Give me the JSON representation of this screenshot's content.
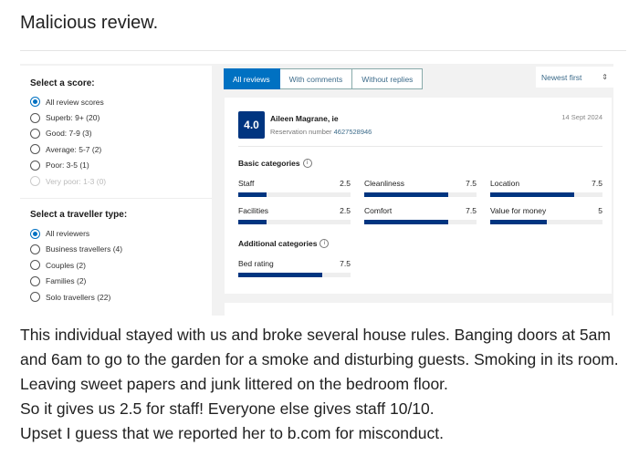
{
  "post": {
    "title": "Malicious review.",
    "body": [
      "This individual stayed with us and broke several house rules. Banging doors at 5am and 6am to go to the garden for a smoke and disturbing guests. Smoking in its room. Leaving sweet papers and junk littered on the bedroom floor.",
      "So it gives us 2.5 for staff! Everyone else gives staff 10/10.",
      "Upset I guess that we reported her to b.com for misconduct."
    ]
  },
  "filters": {
    "score_heading": "Select a score:",
    "scores": [
      {
        "label": "All review scores",
        "selected": true
      },
      {
        "label": "Superb: 9+ (20)"
      },
      {
        "label": "Good: 7-9 (3)"
      },
      {
        "label": "Average: 5-7 (2)"
      },
      {
        "label": "Poor: 3-5 (1)"
      },
      {
        "label": "Very poor: 1-3 (0)",
        "disabled": true
      }
    ],
    "traveller_heading": "Select a traveller type:",
    "travellers": [
      {
        "label": "All reviewers",
        "selected": true
      },
      {
        "label": "Business travellers (4)"
      },
      {
        "label": "Couples (2)"
      },
      {
        "label": "Families (2)"
      },
      {
        "label": "Solo travellers (22)"
      }
    ]
  },
  "tabs": [
    {
      "label": "All reviews",
      "active": true
    },
    {
      "label": "With comments"
    },
    {
      "label": "Without replies"
    }
  ],
  "sort": {
    "value": "Newest first",
    "icon": "up-down-chevron-icon"
  },
  "review": {
    "score": "4.0",
    "name": "Aileen Magrane, ie",
    "reservation_label": "Reservation number",
    "reservation_number": "4627528946",
    "date": "14 Sept 2024",
    "basic_heading": "Basic categories",
    "additional_heading": "Additional categories",
    "max": 10,
    "basic": [
      {
        "label": "Staff",
        "value": "2.5"
      },
      {
        "label": "Cleanliness",
        "value": "7.5"
      },
      {
        "label": "Location",
        "value": "7.5"
      },
      {
        "label": "Facilities",
        "value": "2.5"
      },
      {
        "label": "Comfort",
        "value": "7.5"
      },
      {
        "label": "Value for money",
        "value": "5"
      }
    ],
    "additional": [
      {
        "label": "Bed rating",
        "value": "7.5"
      }
    ]
  },
  "colors": {
    "accent": "#0071c2",
    "bar": "#003580"
  }
}
